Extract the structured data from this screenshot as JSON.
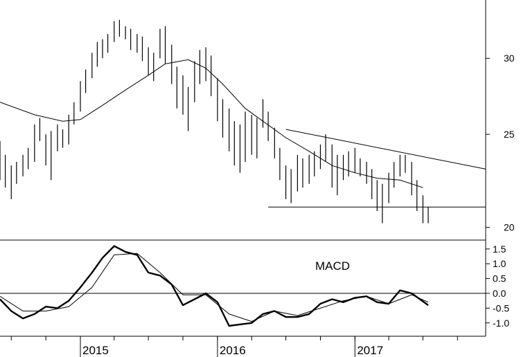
{
  "chart_data": [
    {
      "type": "ohlc",
      "title": "",
      "x_axis": {
        "type": "date",
        "labels": [
          "2015",
          "2016",
          "2017"
        ],
        "label_dates": [
          "2015-01-01",
          "2016-01-01",
          "2017-01-01"
        ],
        "range": [
          "2014-06-01",
          "2017-12-15"
        ]
      },
      "y_axis": {
        "scale": "log",
        "ticks": [
          20,
          25,
          30
        ],
        "range": [
          19.4,
          34.5
        ],
        "position": "right"
      },
      "price": [
        [
          "2014-06-01",
          22.4,
          24.6
        ],
        [
          "2014-06-15",
          22.0,
          23.8
        ],
        [
          "2014-07-01",
          21.4,
          23.2
        ],
        [
          "2014-07-15",
          22.2,
          23.4
        ],
        [
          "2014-08-01",
          22.6,
          23.8
        ],
        [
          "2014-08-15",
          23.0,
          24.2
        ],
        [
          "2014-09-01",
          23.4,
          25.6
        ],
        [
          "2014-09-15",
          24.6,
          26.0
        ],
        [
          "2014-10-01",
          23.2,
          25.0
        ],
        [
          "2014-10-15",
          22.4,
          25.2
        ],
        [
          "2014-11-01",
          24.0,
          25.6
        ],
        [
          "2014-11-15",
          24.2,
          25.3
        ],
        [
          "2014-12-01",
          24.4,
          26.2
        ],
        [
          "2014-12-15",
          25.6,
          27.0
        ],
        [
          "2015-01-01",
          26.4,
          28.4
        ],
        [
          "2015-01-15",
          27.6,
          29.2
        ],
        [
          "2015-02-01",
          28.6,
          30.4
        ],
        [
          "2015-02-15",
          29.4,
          31.2
        ],
        [
          "2015-03-01",
          30.0,
          31.4
        ],
        [
          "2015-03-15",
          30.4,
          31.8
        ],
        [
          "2015-04-01",
          31.2,
          32.8
        ],
        [
          "2015-04-15",
          31.6,
          32.9
        ],
        [
          "2015-05-01",
          31.4,
          32.4
        ],
        [
          "2015-05-15",
          30.6,
          32.2
        ],
        [
          "2015-06-01",
          30.4,
          31.8
        ],
        [
          "2015-06-15",
          29.8,
          31.6
        ],
        [
          "2015-07-01",
          28.8,
          30.8
        ],
        [
          "2015-07-15",
          28.4,
          30.4
        ],
        [
          "2015-08-01",
          30.0,
          32.2
        ],
        [
          "2015-08-15",
          29.6,
          32.4
        ],
        [
          "2015-09-01",
          28.2,
          31.0
        ],
        [
          "2015-09-15",
          26.6,
          29.4
        ],
        [
          "2015-10-01",
          26.2,
          28.8
        ],
        [
          "2015-10-15",
          25.2,
          28.0
        ],
        [
          "2015-11-01",
          27.0,
          29.8
        ],
        [
          "2015-11-15",
          28.2,
          30.6
        ],
        [
          "2015-12-01",
          28.4,
          30.8
        ],
        [
          "2015-12-15",
          27.4,
          30.2
        ],
        [
          "2016-01-01",
          25.8,
          28.6
        ],
        [
          "2016-01-15",
          24.8,
          27.2
        ],
        [
          "2016-02-01",
          24.0,
          26.6
        ],
        [
          "2016-02-15",
          23.2,
          25.8
        ],
        [
          "2016-03-01",
          22.8,
          25.6
        ],
        [
          "2016-03-15",
          23.4,
          26.4
        ],
        [
          "2016-04-01",
          23.8,
          26.2
        ],
        [
          "2016-04-15",
          23.6,
          26.0
        ],
        [
          "2016-05-01",
          25.4,
          27.2
        ],
        [
          "2016-05-15",
          24.6,
          26.4
        ],
        [
          "2016-06-01",
          23.6,
          25.4
        ],
        [
          "2016-06-15",
          22.4,
          24.2
        ],
        [
          "2016-07-01",
          21.4,
          23.2
        ],
        [
          "2016-07-15",
          21.2,
          23.0
        ],
        [
          "2016-08-01",
          21.8,
          23.8
        ],
        [
          "2016-08-15",
          22.0,
          23.6
        ],
        [
          "2016-09-01",
          22.2,
          23.8
        ],
        [
          "2016-09-15",
          22.6,
          24.0
        ],
        [
          "2016-10-01",
          23.0,
          24.4
        ],
        [
          "2016-10-15",
          23.4,
          25.0
        ],
        [
          "2016-11-01",
          22.0,
          24.4
        ],
        [
          "2016-11-15",
          21.6,
          23.8
        ],
        [
          "2016-12-01",
          22.4,
          23.8
        ],
        [
          "2016-12-15",
          22.6,
          24.0
        ],
        [
          "2017-01-01",
          22.8,
          24.2
        ],
        [
          "2017-01-15",
          22.6,
          23.6
        ],
        [
          "2017-02-01",
          22.2,
          23.4
        ],
        [
          "2017-02-15",
          21.4,
          23.0
        ],
        [
          "2017-03-01",
          20.8,
          22.4
        ],
        [
          "2017-03-15",
          20.2,
          22.2
        ],
        [
          "2017-04-01",
          21.2,
          22.8
        ],
        [
          "2017-04-15",
          22.0,
          23.4
        ],
        [
          "2017-05-01",
          22.6,
          23.8
        ],
        [
          "2017-05-15",
          22.8,
          23.8
        ],
        [
          "2017-06-01",
          21.6,
          23.4
        ],
        [
          "2017-06-15",
          20.8,
          22.4
        ],
        [
          "2017-07-01",
          20.2,
          21.6
        ],
        [
          "2017-07-15",
          20.2,
          21.0
        ]
      ],
      "moving_average": [
        [
          "2014-06-01",
          27.0
        ],
        [
          "2014-09-01",
          26.2
        ],
        [
          "2014-11-15",
          25.8
        ],
        [
          "2015-01-01",
          25.9
        ],
        [
          "2015-03-01",
          26.8
        ],
        [
          "2015-05-01",
          27.8
        ],
        [
          "2015-07-01",
          28.8
        ],
        [
          "2015-08-15",
          29.6
        ],
        [
          "2015-10-15",
          29.9
        ],
        [
          "2015-12-01",
          29.3
        ],
        [
          "2016-01-15",
          28.2
        ],
        [
          "2016-03-15",
          26.6
        ],
        [
          "2016-05-01",
          25.8
        ],
        [
          "2016-07-01",
          24.8
        ],
        [
          "2016-09-01",
          24.0
        ],
        [
          "2016-11-01",
          23.2
        ],
        [
          "2017-01-01",
          22.8
        ],
        [
          "2017-03-01",
          22.5
        ],
        [
          "2017-05-01",
          22.4
        ],
        [
          "2017-07-01",
          22.0
        ]
      ],
      "trendlines": [
        {
          "type": "resistance",
          "from": [
            "2016-07-01",
            25.3
          ],
          "to": [
            "2017-12-15",
            23.0
          ]
        },
        {
          "type": "support",
          "from": [
            "2016-05-15",
            21.0
          ],
          "to": [
            "2017-12-15",
            21.0
          ]
        }
      ]
    },
    {
      "type": "line",
      "label": "MACD",
      "y_axis": {
        "ticks": [
          -1.0,
          -0.5,
          0.0,
          0.5,
          1.0,
          1.5
        ],
        "range": [
          -1.45,
          1.8
        ],
        "position": "right",
        "zero_line": true
      },
      "series": [
        {
          "values": [
            [
              "2014-06-01",
              -0.2
            ],
            [
              "2014-07-01",
              -0.6
            ],
            [
              "2014-08-01",
              -0.85
            ],
            [
              "2014-09-01",
              -0.7
            ],
            [
              "2014-10-01",
              -0.45
            ],
            [
              "2014-11-01",
              -0.5
            ],
            [
              "2014-12-01",
              -0.25
            ],
            [
              "2015-01-01",
              0.2
            ],
            [
              "2015-02-01",
              0.7
            ],
            [
              "2015-03-01",
              1.2
            ],
            [
              "2015-04-01",
              1.6
            ],
            [
              "2015-05-01",
              1.4
            ],
            [
              "2015-06-01",
              1.3
            ],
            [
              "2015-07-01",
              0.7
            ],
            [
              "2015-08-01",
              0.6
            ],
            [
              "2015-09-01",
              0.3
            ],
            [
              "2015-10-01",
              -0.4
            ],
            [
              "2015-11-01",
              -0.2
            ],
            [
              "2015-12-01",
              0.0
            ],
            [
              "2016-01-01",
              -0.3
            ],
            [
              "2016-02-01",
              -1.1
            ],
            [
              "2016-03-01",
              -1.05
            ],
            [
              "2016-04-01",
              -1.0
            ],
            [
              "2016-05-01",
              -0.7
            ],
            [
              "2016-06-01",
              -0.6
            ],
            [
              "2016-07-01",
              -0.8
            ],
            [
              "2016-08-01",
              -0.8
            ],
            [
              "2016-09-01",
              -0.7
            ],
            [
              "2016-10-01",
              -0.35
            ],
            [
              "2016-11-01",
              -0.2
            ],
            [
              "2016-12-01",
              -0.3
            ],
            [
              "2017-01-01",
              -0.15
            ],
            [
              "2017-02-01",
              -0.1
            ],
            [
              "2017-03-01",
              -0.3
            ],
            [
              "2017-04-01",
              -0.35
            ],
            [
              "2017-05-01",
              0.1
            ],
            [
              "2017-06-01",
              0.0
            ],
            [
              "2017-07-15",
              -0.4
            ]
          ]
        },
        {
          "values": [
            [
              "2014-06-01",
              -0.1
            ],
            [
              "2014-08-01",
              -0.6
            ],
            [
              "2014-10-01",
              -0.6
            ],
            [
              "2014-12-01",
              -0.45
            ],
            [
              "2015-02-01",
              0.2
            ],
            [
              "2015-04-01",
              1.3
            ],
            [
              "2015-06-01",
              1.35
            ],
            [
              "2015-08-01",
              0.7
            ],
            [
              "2015-10-01",
              -0.05
            ],
            [
              "2015-12-01",
              -0.05
            ],
            [
              "2016-02-01",
              -0.7
            ],
            [
              "2016-04-01",
              -0.95
            ],
            [
              "2016-06-01",
              -0.6
            ],
            [
              "2016-08-01",
              -0.75
            ],
            [
              "2016-10-01",
              -0.5
            ],
            [
              "2016-12-01",
              -0.25
            ],
            [
              "2017-02-01",
              -0.1
            ],
            [
              "2017-04-01",
              -0.35
            ],
            [
              "2017-06-01",
              -0.05
            ],
            [
              "2017-07-15",
              -0.3
            ]
          ]
        }
      ]
    }
  ]
}
